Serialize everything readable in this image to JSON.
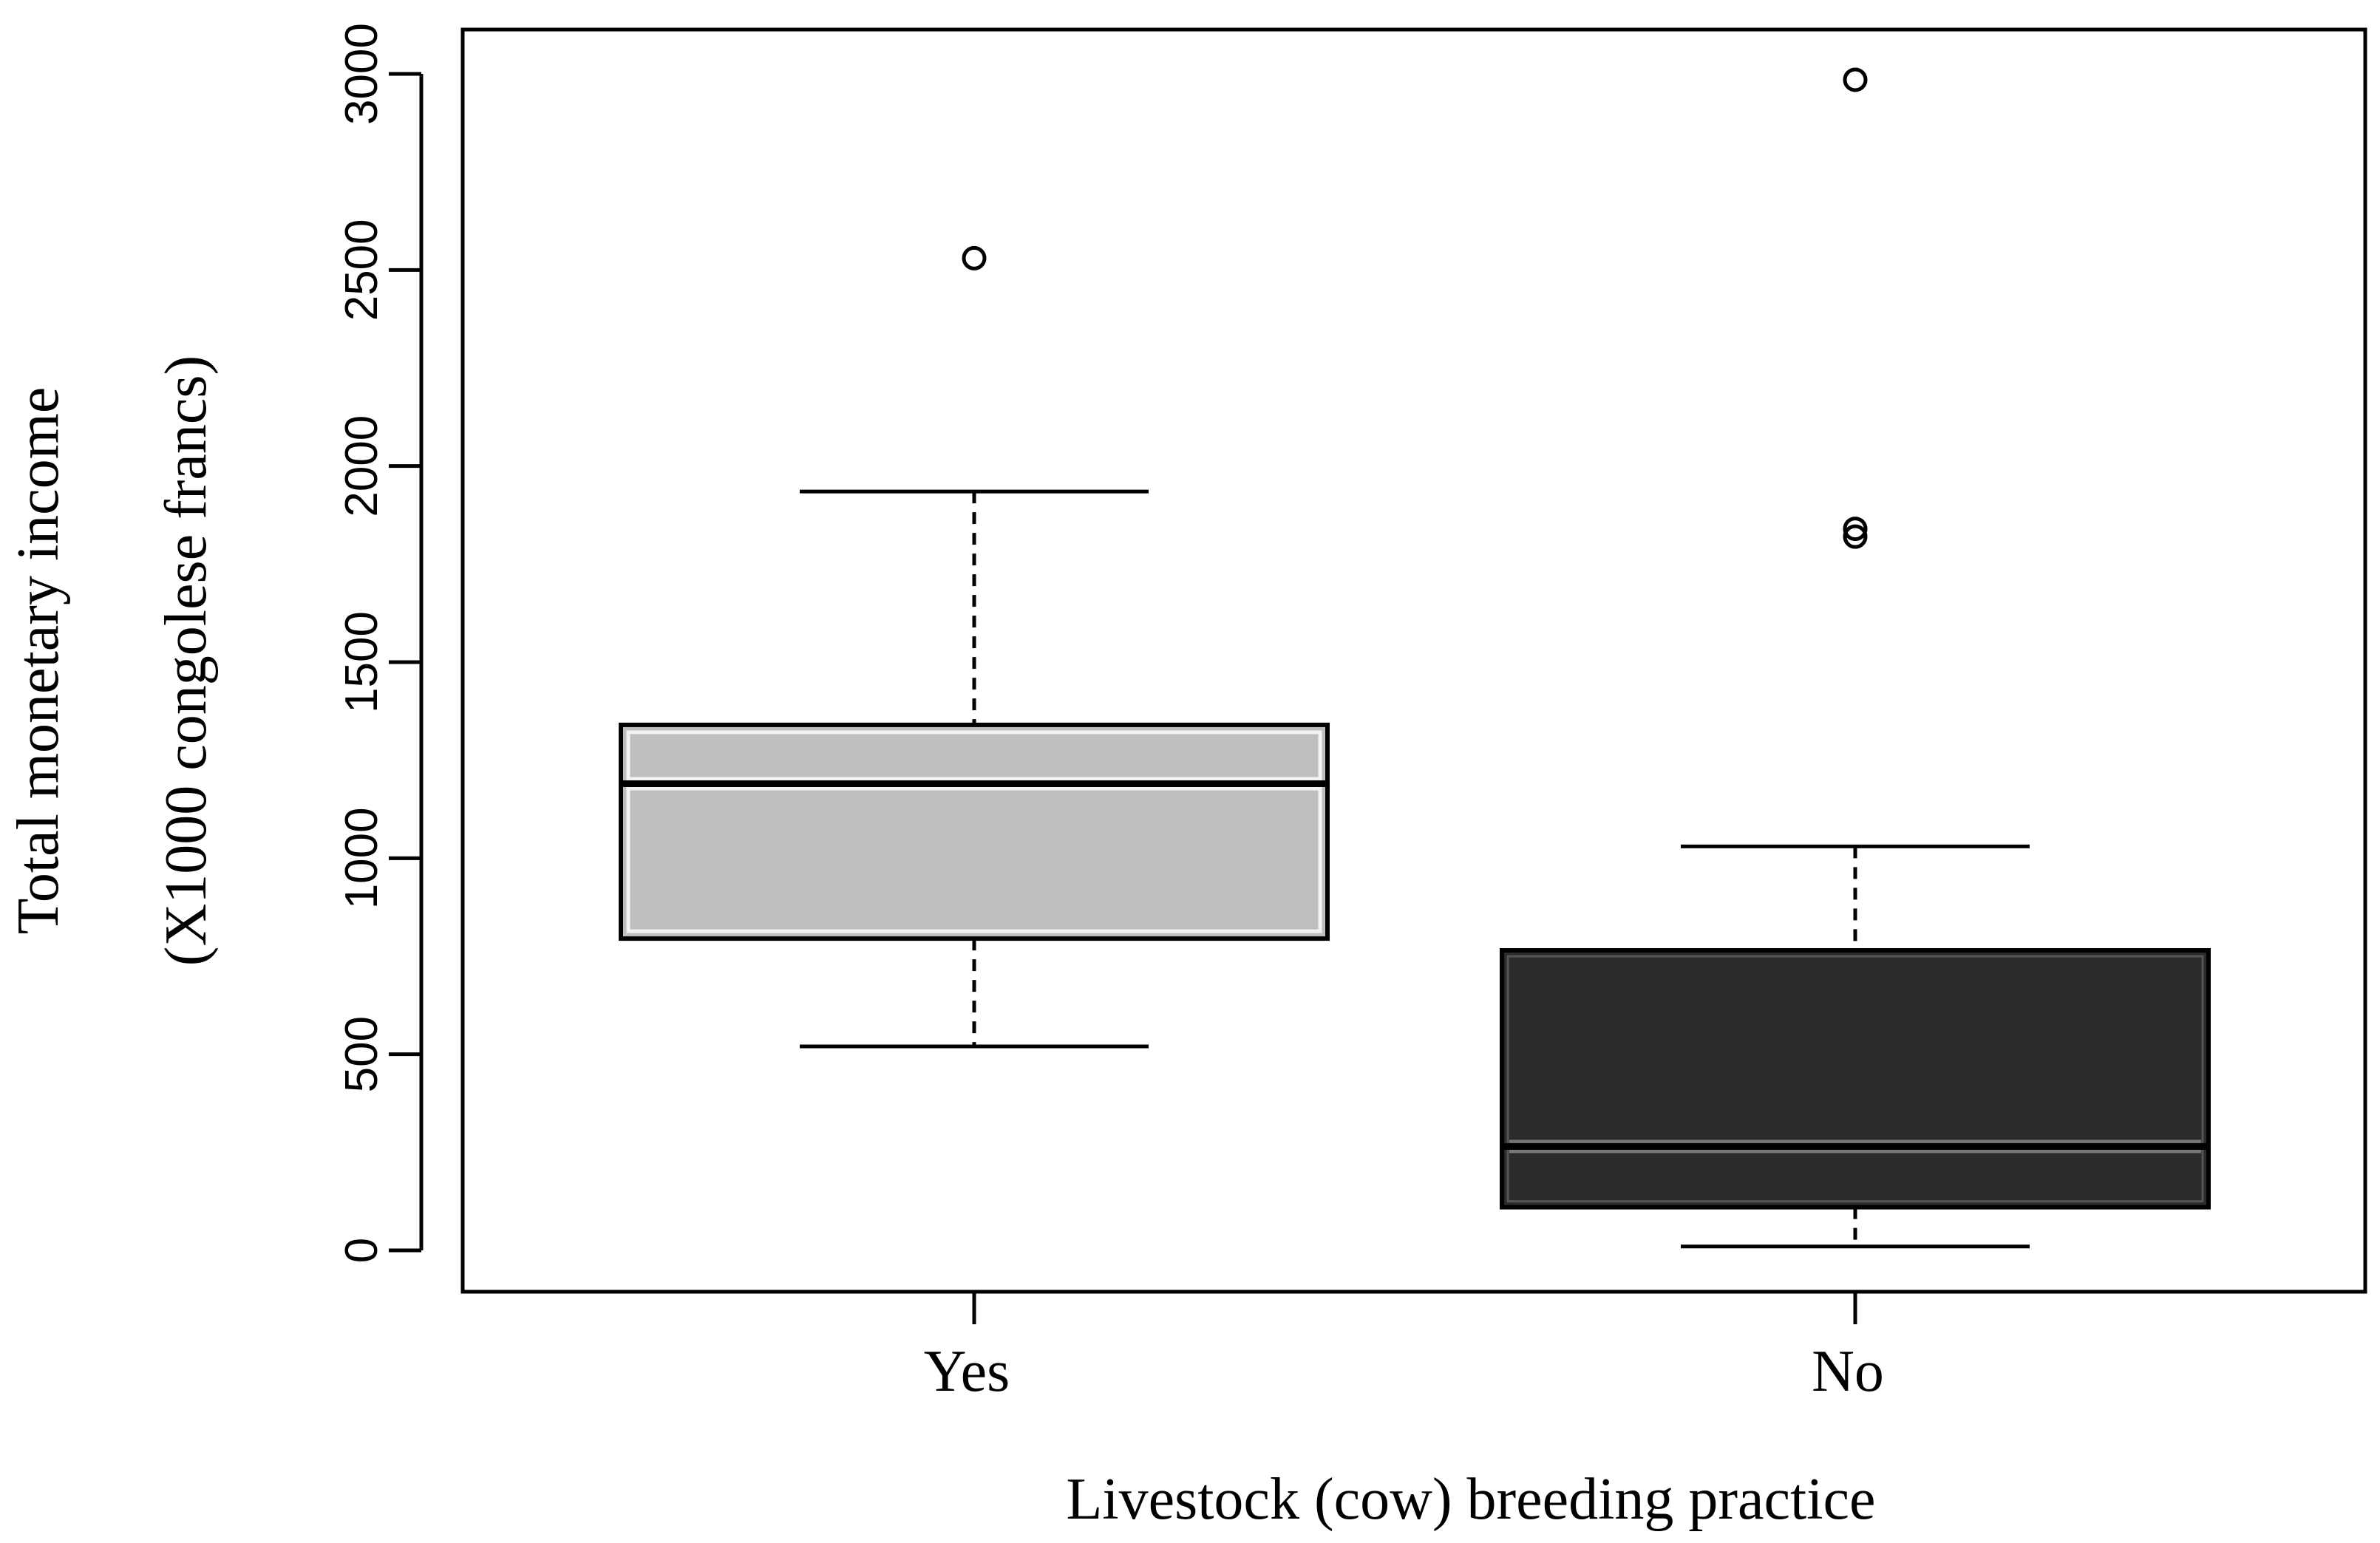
{
  "chart_data": {
    "type": "boxplot",
    "title": "",
    "xlabel": "Livestock (cow) breeding practice",
    "ylabel_line1": "Total monetary income",
    "ylabel_line2": "(X1000 congolese francs)",
    "ylim": [
      -110,
      3110
    ],
    "yticks": [
      0,
      500,
      1000,
      1500,
      2000,
      2500,
      3000
    ],
    "ytick_labels": [
      "0",
      "500",
      "1000",
      "1500",
      "2000",
      "2500",
      "3000"
    ],
    "categories": [
      "Yes",
      "No"
    ],
    "series": [
      {
        "name": "Yes",
        "whisker_low": 520,
        "q1": 795,
        "median": 1190,
        "q3": 1340,
        "whisker_high": 1935,
        "outliers": [
          2530
        ],
        "fill_color": "#bebebe",
        "median_color": "#000000"
      },
      {
        "name": "No",
        "whisker_low": 10,
        "q1": 110,
        "median": 265,
        "q3": 765,
        "whisker_high": 1030,
        "outliers": [
          1820,
          1840,
          2985
        ],
        "fill_color": "#2b2b2b",
        "median_color": "#000000"
      }
    ]
  }
}
